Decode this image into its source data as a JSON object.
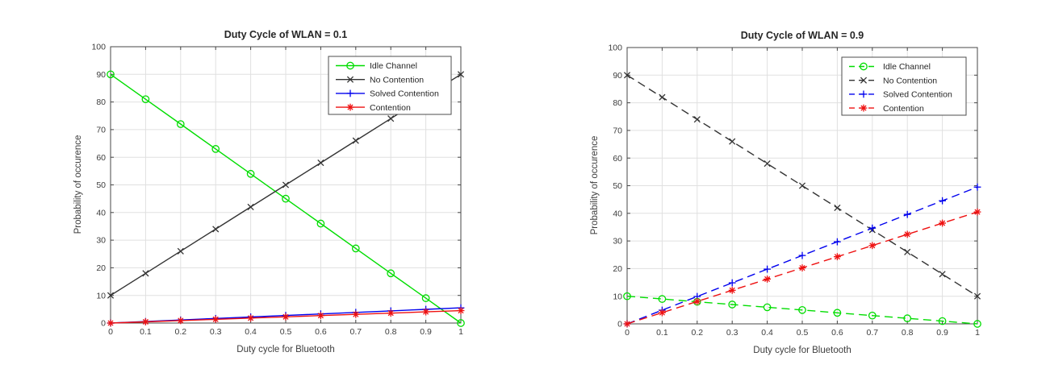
{
  "figure": {
    "background": "#ffffff",
    "grid_color": "#e0e0e0",
    "axis_color": "#474747",
    "text_color": "#3d3d3d"
  },
  "chart_data": [
    {
      "type": "line",
      "title": "Duty Cycle of WLAN = 0.1",
      "xlabel": "Duty cycle for Bluetooth",
      "ylabel": "Probability of occurence",
      "xlim": [
        0,
        1
      ],
      "ylim": [
        0,
        100
      ],
      "xticks": [
        "0",
        "0.1",
        "0.2",
        "0.3",
        "0.4",
        "0.5",
        "0.6",
        "0.7",
        "0.8",
        "0.9",
        "1"
      ],
      "yticks": [
        "0",
        "10",
        "20",
        "30",
        "40",
        "50",
        "60",
        "70",
        "80",
        "90",
        "100"
      ],
      "grid": true,
      "line_style": "solid",
      "legend_position": "top-right-inside",
      "x": [
        0,
        0.1,
        0.2,
        0.3,
        0.4,
        0.5,
        0.6,
        0.7,
        0.8,
        0.9,
        1
      ],
      "series": [
        {
          "name": "Idle Channel",
          "color": "#00dd00",
          "marker": "circle",
          "values": [
            90,
            81,
            72,
            63,
            54,
            45,
            36,
            27,
            18,
            9,
            0
          ]
        },
        {
          "name": "No Contention",
          "color": "#333333",
          "marker": "x",
          "values": [
            10,
            18,
            26,
            34,
            42,
            50,
            58,
            66,
            74,
            82,
            90
          ]
        },
        {
          "name": "Solved Contention",
          "color": "#0000ee",
          "marker": "plus",
          "values": [
            0,
            0.55,
            1.1,
            1.65,
            2.2,
            2.75,
            3.3,
            3.85,
            4.4,
            4.95,
            5.5
          ]
        },
        {
          "name": "Contention",
          "color": "#ee1111",
          "marker": "asterisk",
          "values": [
            0,
            0.45,
            0.9,
            1.35,
            1.8,
            2.25,
            2.7,
            3.15,
            3.6,
            4.05,
            4.5
          ]
        }
      ]
    },
    {
      "type": "line",
      "title": "Duty Cycle of WLAN = 0.9",
      "xlabel": "Duty cycle for Bluetooth",
      "ylabel": "Probability of occurence",
      "xlim": [
        0,
        1
      ],
      "ylim": [
        0,
        100
      ],
      "xticks": [
        "0",
        "0.1",
        "0.2",
        "0.3",
        "0.4",
        "0.5",
        "0.6",
        "0.7",
        "0.8",
        "0.9",
        "1"
      ],
      "yticks": [
        "0",
        "10",
        "20",
        "30",
        "40",
        "50",
        "60",
        "70",
        "80",
        "90",
        "100"
      ],
      "grid": true,
      "line_style": "dashed",
      "legend_position": "top-right-inside",
      "x": [
        0,
        0.1,
        0.2,
        0.3,
        0.4,
        0.5,
        0.6,
        0.7,
        0.8,
        0.9,
        1
      ],
      "series": [
        {
          "name": "Idle Channel",
          "color": "#00dd00",
          "marker": "circle",
          "values": [
            10,
            9,
            8,
            7,
            6,
            5,
            4,
            3,
            2,
            1,
            0
          ]
        },
        {
          "name": "No Contention",
          "color": "#333333",
          "marker": "x",
          "values": [
            90,
            82,
            74,
            66,
            58,
            50,
            42,
            34,
            26,
            18,
            10
          ]
        },
        {
          "name": "Solved Contention",
          "color": "#0000ee",
          "marker": "plus",
          "values": [
            0,
            4.95,
            9.9,
            14.85,
            19.8,
            24.75,
            29.7,
            34.65,
            39.6,
            44.55,
            49.5
          ]
        },
        {
          "name": "Contention",
          "color": "#ee1111",
          "marker": "asterisk",
          "values": [
            0,
            4.05,
            8.1,
            12.15,
            16.2,
            20.25,
            24.3,
            28.35,
            32.4,
            36.45,
            40.5
          ]
        }
      ]
    }
  ]
}
